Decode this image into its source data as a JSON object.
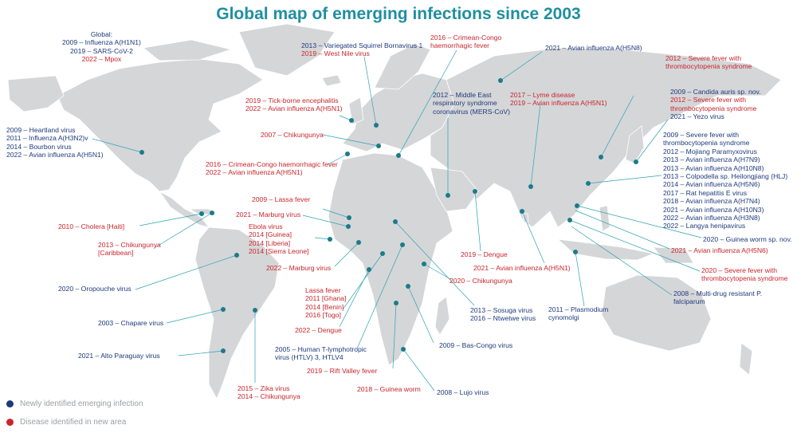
{
  "title": "Global map of emerging infections since 2003",
  "colors": {
    "new_infection": "#1e3a7b",
    "new_area": "#c9252c",
    "marker": "#1b7b8a",
    "land": "#d5d6d8",
    "leader": "#2aa3b2"
  },
  "legend": [
    {
      "label": "Newly identified emerging infection",
      "color": "#1e3a7b"
    },
    {
      "label": "Disease identified in new area",
      "color": "#c9252c"
    }
  ],
  "annotations": [
    {
      "id": "global",
      "color": "blue",
      "lines": [
        {
          "t": "Global:",
          "c": "blue"
        },
        {
          "t": "2009 – Influenza A(H1N1)",
          "c": "blue"
        },
        {
          "t": "2019 – SARS-CoV-2",
          "c": "blue"
        },
        {
          "t": "2022 – Mpox",
          "c": "red"
        }
      ]
    },
    {
      "id": "usa",
      "lines": [
        {
          "t": "2009 – Heartland virus",
          "c": "blue"
        },
        {
          "t": "2011 – Influenza A(H3N2)v",
          "c": "blue"
        },
        {
          "t": "2014 – Bourbon virus",
          "c": "blue"
        },
        {
          "t": "2022 – Avian influenza A(H5N1)",
          "c": "blue"
        }
      ]
    },
    {
      "id": "haiti",
      "lines": [
        {
          "t": "2010 – Cholera [Haiti]",
          "c": "red"
        }
      ]
    },
    {
      "id": "caribbean",
      "lines": [
        {
          "t": "2013 – Chikungunya",
          "c": "red"
        },
        {
          "t": "[Caribbean]",
          "c": "red"
        }
      ]
    },
    {
      "id": "oropouche",
      "lines": [
        {
          "t": "2020 – Oropouche virus",
          "c": "blue"
        }
      ]
    },
    {
      "id": "chapare",
      "lines": [
        {
          "t": "2003 – Chapare virus",
          "c": "blue"
        }
      ]
    },
    {
      "id": "altoparaguay",
      "lines": [
        {
          "t": "2021 – Alto Paraguay virus",
          "c": "blue"
        }
      ]
    },
    {
      "id": "brazil",
      "lines": [
        {
          "t": "2015 – Zika virus",
          "c": "red"
        },
        {
          "t": "2014 – Chikungunya",
          "c": "red"
        }
      ]
    },
    {
      "id": "squirrel",
      "lines": [
        {
          "t": "2013 – Variegated Squirrel Bornavirus 1",
          "c": "blue"
        },
        {
          "t": "2019 – West Nile virus",
          "c": "red"
        }
      ]
    },
    {
      "id": "cchf2016a",
      "lines": [
        {
          "t": "2016 – Crimean-Congo",
          "c": "red"
        },
        {
          "t": "haemorrhagic fever",
          "c": "red"
        }
      ]
    },
    {
      "id": "russia",
      "lines": [
        {
          "t": "2021 – Avian influenza A(H5N8)",
          "c": "blue"
        }
      ]
    },
    {
      "id": "tbe",
      "lines": [
        {
          "t": "2019 – Tick-borne encephalitis",
          "c": "red"
        },
        {
          "t": "2022 – Avian influenza A(H5N1)",
          "c": "red"
        }
      ]
    },
    {
      "id": "chik2007",
      "lines": [
        {
          "t": "2007 – Chikungunya",
          "c": "red"
        }
      ]
    },
    {
      "id": "spain",
      "lines": [
        {
          "t": "2016 – Crimean-Congo haemorrhagic fever",
          "c": "red"
        },
        {
          "t": "2022 – Avian influenza A(H5N1)",
          "c": "red"
        }
      ]
    },
    {
      "id": "mers",
      "lines": [
        {
          "t": "2012 – Middle East",
          "c": "blue"
        },
        {
          "t": "respiratory syndrome",
          "c": "blue"
        },
        {
          "t": "coronavirus (MERS-CoV)",
          "c": "blue"
        }
      ]
    },
    {
      "id": "lyme",
      "lines": [
        {
          "t": "2017 – Lyme disease",
          "c": "red"
        },
        {
          "t": "2019 – Avian influenza A(H5N1)",
          "c": "red"
        }
      ]
    },
    {
      "id": "sfts2012",
      "lines": [
        {
          "t": "2012 – Severe fever with",
          "c": "red"
        },
        {
          "t": "thrombocytopenia syndrome",
          "c": "red"
        }
      ]
    },
    {
      "id": "japan",
      "lines": [
        {
          "t": "2009 – Candida auris sp. nov.",
          "c": "blue"
        },
        {
          "t": "2012 – Severe fever with",
          "c": "red"
        },
        {
          "t": "thrombocytopenia syndrome",
          "c": "red"
        },
        {
          "t": "2021 – Yezo virus",
          "c": "blue"
        }
      ]
    },
    {
      "id": "china",
      "lines": [
        {
          "t": "2009 – Severe fever with",
          "c": "blue"
        },
        {
          "t": "thrombocytopenia syndrome",
          "c": "blue"
        },
        {
          "t": "2012 – Mojiang Paramyxovirus",
          "c": "blue"
        },
        {
          "t": "2013 – Avian influenza A(H7N9)",
          "c": "blue"
        },
        {
          "t": "2013 – Avian influenza A(H10N8)",
          "c": "blue"
        },
        {
          "t": "2013 – Colpodella sp. Heilongjiang (HLJ)",
          "c": "blue"
        },
        {
          "t": "2014 – Avian influenza A(H5N6)",
          "c": "blue"
        },
        {
          "t": "2017 – Rat hepatitis E virus",
          "c": "blue"
        },
        {
          "t": "2018 – Avian influenza A(H7N4)",
          "c": "blue"
        },
        {
          "t": "2021 – Avian influenza A(H10N3)",
          "c": "blue"
        },
        {
          "t": "2022 – Avian influenza A(H3N8)",
          "c": "blue"
        },
        {
          "t": "2022 – Langya henipavirus",
          "c": "blue"
        }
      ]
    },
    {
      "id": "guineaworm2020",
      "lines": [
        {
          "t": "2020 – Guinea worm sp. nov.",
          "c": "blue"
        }
      ]
    },
    {
      "id": "laos",
      "lines": [
        {
          "t": "2021 – Avian influenza A(H5N6)",
          "c": "red"
        }
      ]
    },
    {
      "id": "sfts2020",
      "lines": [
        {
          "t": "2020 – Severe fever with",
          "c": "red"
        },
        {
          "t": "thrombocytopenia syndrome",
          "c": "red"
        }
      ]
    },
    {
      "id": "falciparum",
      "lines": [
        {
          "t": "2008 – Multi-drug resistant P.",
          "c": "blue"
        },
        {
          "t": "falciparum",
          "c": "blue"
        }
      ]
    },
    {
      "id": "knowlesi",
      "lines": [
        {
          "t": "2011 – Plasmodium",
          "c": "blue"
        },
        {
          "t": "cynomolgi",
          "c": "blue"
        }
      ]
    },
    {
      "id": "dengue2019",
      "lines": [
        {
          "t": "2019 – Dengue",
          "c": "red"
        }
      ]
    },
    {
      "id": "h5n1india",
      "lines": [
        {
          "t": "2021 – Avian influenza A(H5N1)",
          "c": "red"
        }
      ]
    },
    {
      "id": "chik2020",
      "lines": [
        {
          "t": "2020 – Chikungunya",
          "c": "red"
        }
      ]
    },
    {
      "id": "lassa2009",
      "lines": [
        {
          "t": "2009 – Lassa fever",
          "c": "red"
        }
      ]
    },
    {
      "id": "marburg2021",
      "lines": [
        {
          "t": "2021 – Marburg virus",
          "c": "red"
        }
      ]
    },
    {
      "id": "ebola",
      "lines": [
        {
          "t": "Ebola virus",
          "c": "red"
        },
        {
          "t": "2014 [Guinea]",
          "c": "red"
        },
        {
          "t": "2014 [Liberia]",
          "c": "red"
        },
        {
          "t": "2014 [Sierra Leone]",
          "c": "red"
        }
      ]
    },
    {
      "id": "marburg2022",
      "lines": [
        {
          "t": "2022 – Marburg virus",
          "c": "red"
        }
      ]
    },
    {
      "id": "lassa",
      "lines": [
        {
          "t": "Lassa fever",
          "c": "red"
        },
        {
          "t": "2011 [Ghana]",
          "c": "red"
        },
        {
          "t": "2014 [Benin]",
          "c": "red"
        },
        {
          "t": "2016 [Togo]",
          "c": "red"
        }
      ]
    },
    {
      "id": "dengue2022",
      "lines": [
        {
          "t": "2022 – Dengue",
          "c": "red"
        }
      ]
    },
    {
      "id": "htlv",
      "lines": [
        {
          "t": "2005 – Human T-lymphotropic",
          "c": "blue"
        },
        {
          "t": "virus (HTLV) 3, HTLV4",
          "c": "blue"
        }
      ]
    },
    {
      "id": "rvf",
      "lines": [
        {
          "t": "2019 – Rift Valley fever",
          "c": "red"
        }
      ]
    },
    {
      "id": "guineaworm2018",
      "lines": [
        {
          "t": "2018 – Guinea worm",
          "c": "red"
        }
      ]
    },
    {
      "id": "lujo",
      "lines": [
        {
          "t": "2008 – Lujo virus",
          "c": "blue"
        }
      ]
    },
    {
      "id": "bascongo",
      "lines": [
        {
          "t": "2009 – Bas-Congo virus",
          "c": "blue"
        }
      ]
    },
    {
      "id": "sosuga",
      "lines": [
        {
          "t": "2013 – Sosuga virus",
          "c": "blue"
        },
        {
          "t": "2016 – Ntwetwe virus",
          "c": "blue"
        }
      ]
    }
  ]
}
